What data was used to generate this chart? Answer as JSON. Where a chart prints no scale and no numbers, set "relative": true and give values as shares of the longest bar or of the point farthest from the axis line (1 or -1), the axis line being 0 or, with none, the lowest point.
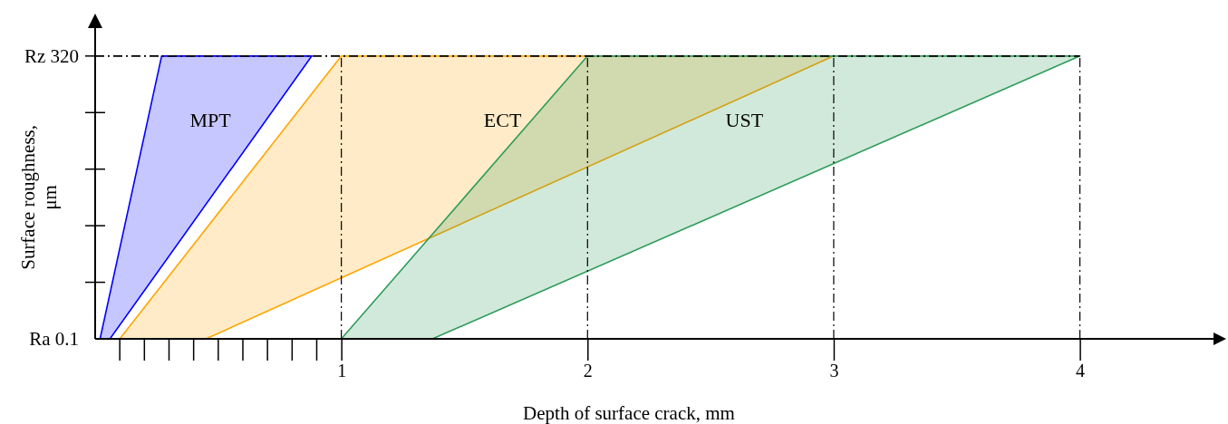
{
  "chart_data": {
    "type": "area",
    "xlabel": "Depth of surface crack, mm",
    "ylabel": "Surface roughness, μm",
    "xlim": [
      0,
      4.55
    ],
    "relative": true,
    "annotations": [
      "Ra 0.1",
      "Rz 320"
    ],
    "xticks": [
      1,
      2,
      3,
      4
    ],
    "ref_lines": [
      {
        "axis": "y",
        "value": 1,
        "line_style": "dashed",
        "color": "#000000"
      },
      {
        "axis": "x",
        "value": 1,
        "line_style": "dashed",
        "color": "#000000"
      },
      {
        "axis": "x",
        "value": 2,
        "line_style": "dashed",
        "color": "#000000"
      },
      {
        "axis": "x",
        "value": 3,
        "line_style": "dashed",
        "color": "#000000"
      },
      {
        "axis": "x",
        "value": 4,
        "line_style": "dashed",
        "color": "#000000"
      }
    ],
    "series": [
      {
        "name": "MPT",
        "color": "#0000ff",
        "x": [
          0.02,
          0.27,
          0.88,
          0.06
        ],
        "values": [
          0,
          1,
          1,
          0
        ]
      },
      {
        "name": "ECT",
        "color": "#ffa500",
        "x": [
          0.1,
          1,
          3,
          0.45
        ],
        "values": [
          0,
          1,
          1,
          0
        ]
      },
      {
        "name": "UST",
        "color": "#2e9c5a",
        "x": [
          1,
          2,
          4,
          1.37
        ],
        "values": [
          0,
          1,
          1,
          0
        ]
      }
    ]
  }
}
